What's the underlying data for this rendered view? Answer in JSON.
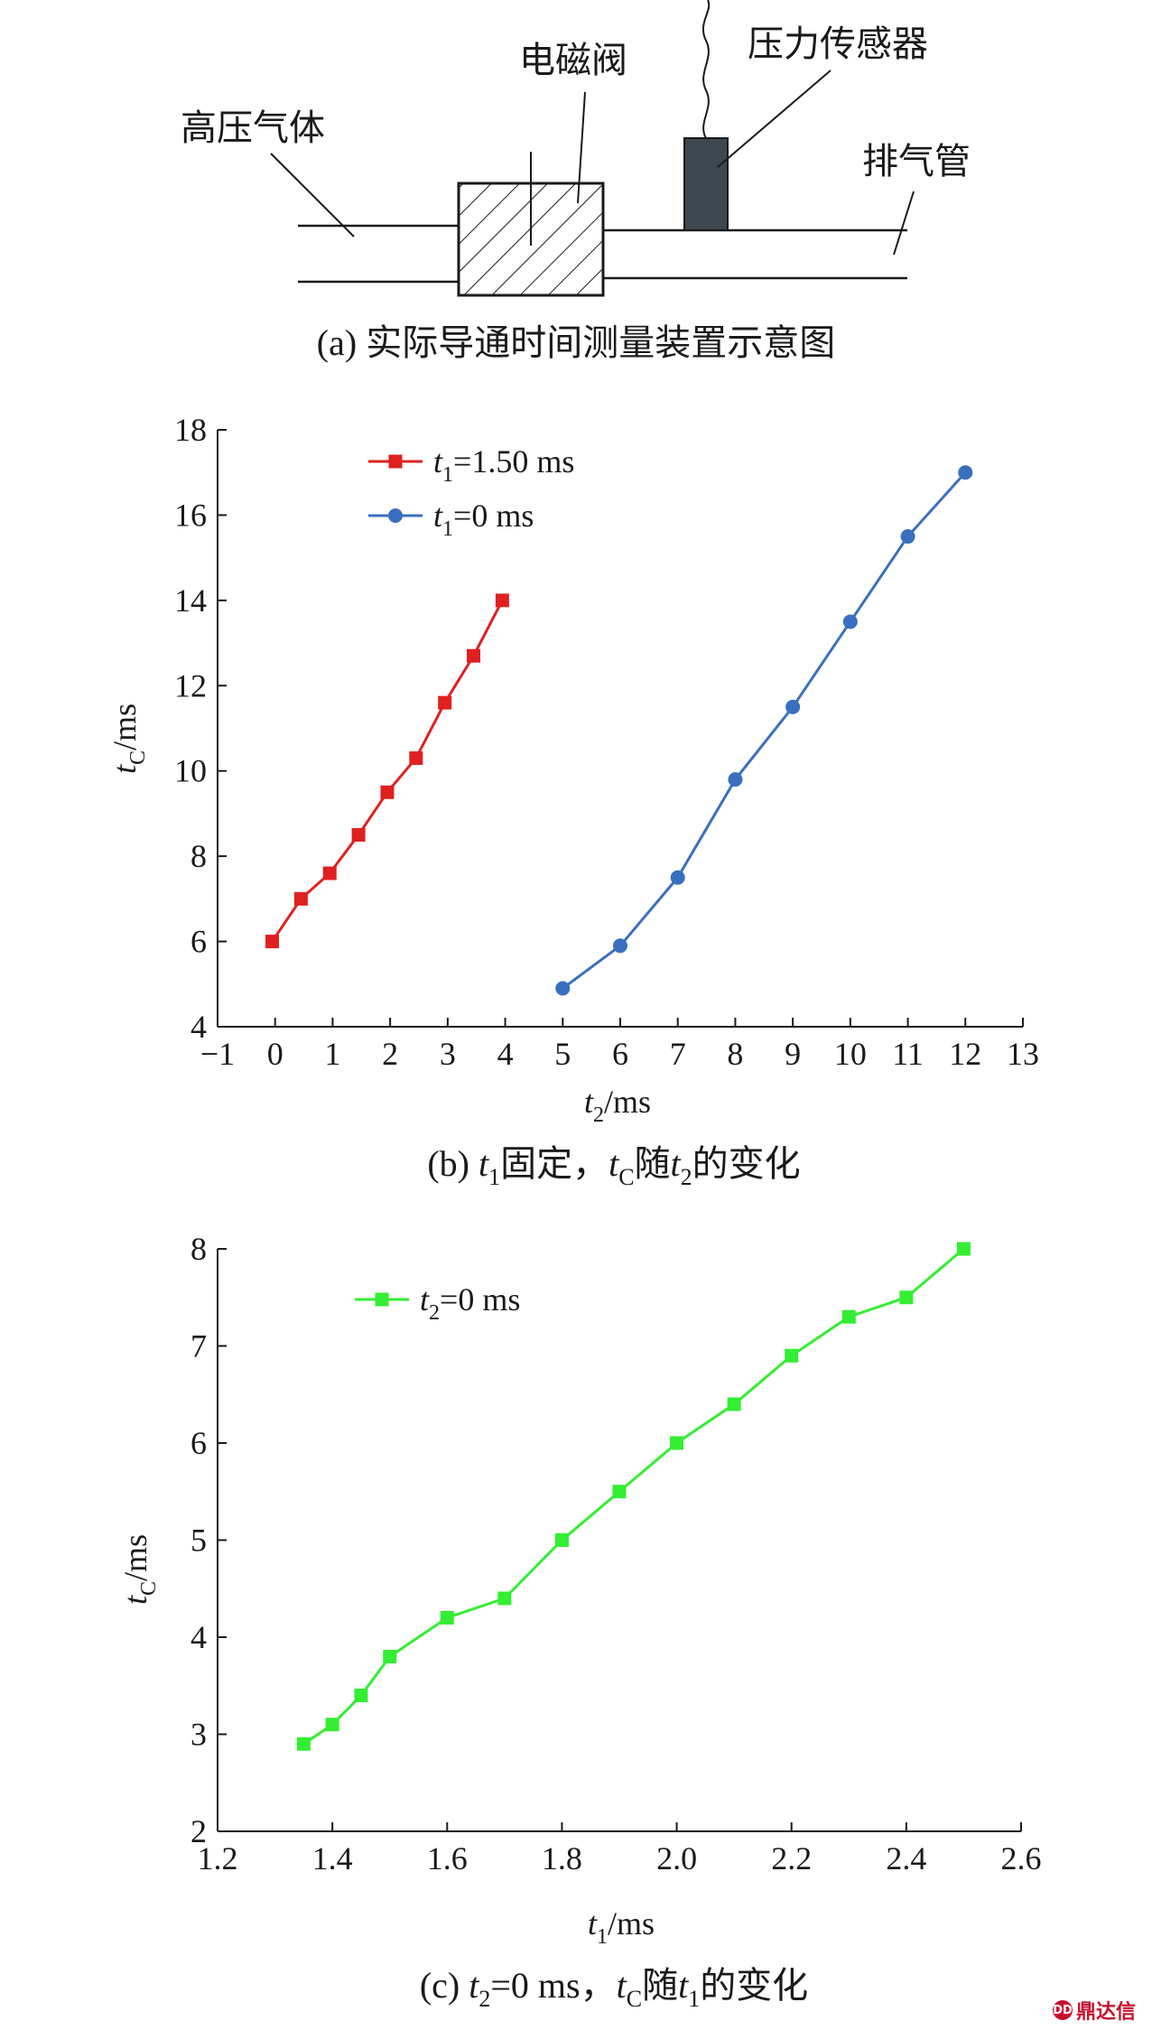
{
  "diagram": {
    "labels": {
      "gas": "高压气体",
      "valve": "电磁阀",
      "sensor": "压力传感器",
      "exhaust": "排气管"
    },
    "caption": "(a) 实际导通时间测量装置示意图"
  },
  "chart_b": {
    "caption_parts": [
      "(b) ",
      "t",
      "1",
      "固定，",
      "t",
      "C",
      "随",
      "t",
      "2",
      "的变化"
    ],
    "xlabel": {
      "var": "t",
      "sub": "2",
      "unit": "/ms"
    },
    "ylabel": {
      "var": "t",
      "sub": "C",
      "unit": "/ms"
    }
  },
  "chart_c": {
    "caption_parts": [
      "(c) ",
      "t",
      "2",
      "=0 ms，",
      "t",
      "C",
      "随",
      "t",
      "1",
      "的变化"
    ],
    "xlabel": {
      "var": "t",
      "sub": "1",
      "unit": "/ms"
    },
    "ylabel": {
      "var": "t",
      "sub": "C",
      "unit": "/ms"
    }
  },
  "chart_data": [
    {
      "type": "line",
      "xlim": [
        -1,
        13
      ],
      "ylim": [
        4,
        18
      ],
      "xticks": [
        -1,
        0,
        1,
        2,
        3,
        4,
        5,
        6,
        7,
        8,
        9,
        10,
        11,
        12,
        13
      ],
      "yticks": [
        4,
        6,
        8,
        10,
        12,
        14,
        16,
        18
      ],
      "legend_position": "top-left",
      "grid": false,
      "series": [
        {
          "name": "t1=1.50 ms",
          "legend": {
            "var": "t",
            "sub": "1",
            "rest": "=1.50 ms"
          },
          "color": "#e02020",
          "marker": "square",
          "x": [
            -0.05,
            0.45,
            0.95,
            1.45,
            1.95,
            2.45,
            2.95,
            3.45,
            3.95
          ],
          "y": [
            6.0,
            7.0,
            7.6,
            8.5,
            9.5,
            10.3,
            11.6,
            12.7,
            14.0
          ]
        },
        {
          "name": "t1=0 ms",
          "legend": {
            "var": "t",
            "sub": "1",
            "rest": "=0 ms"
          },
          "color": "#3a6fbf",
          "marker": "circle",
          "x": [
            5,
            6,
            7,
            8,
            9,
            10,
            11,
            12
          ],
          "y": [
            4.9,
            5.9,
            7.5,
            9.8,
            11.5,
            13.5,
            15.5,
            17.0
          ]
        }
      ]
    },
    {
      "type": "line",
      "xlim": [
        1.2,
        2.6
      ],
      "ylim": [
        2,
        8
      ],
      "xticks": [
        1.2,
        1.4,
        1.6,
        1.8,
        2.0,
        2.2,
        2.4,
        2.6
      ],
      "yticks": [
        2,
        3,
        4,
        5,
        6,
        7,
        8
      ],
      "legend_position": "top-left",
      "grid": false,
      "series": [
        {
          "name": "t2=0 ms",
          "legend": {
            "var": "t",
            "sub": "2",
            "rest": "=0 ms"
          },
          "color": "#33ee33",
          "marker": "square",
          "x": [
            1.35,
            1.4,
            1.45,
            1.5,
            1.6,
            1.7,
            1.8,
            1.9,
            2.0,
            2.1,
            2.2,
            2.3,
            2.4,
            2.5
          ],
          "y": [
            2.9,
            3.1,
            3.4,
            3.8,
            4.2,
            4.4,
            5.0,
            5.5,
            6.0,
            6.4,
            6.9,
            7.3,
            7.5,
            8.0
          ]
        }
      ]
    }
  ],
  "watermark": {
    "text": "鼎达信",
    "mark": "DD"
  }
}
